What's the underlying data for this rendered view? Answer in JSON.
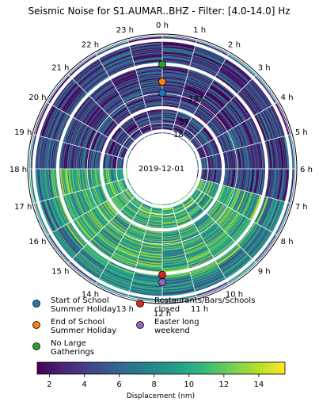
{
  "chart_data": {
    "type": "polar_heatmap",
    "title": "Seismic Noise for S1.AUMAR..BHZ - Filter: [4.0-14.0] Hz",
    "hour_labels": [
      "0 h",
      "1 h",
      "2 h",
      "3 h",
      "4 h",
      "5 h",
      "6 h",
      "7 h",
      "8 h",
      "9 h",
      "10 h",
      "11 h",
      "12 h",
      "13 h",
      "14 h",
      "15 h",
      "16 h",
      "17 h",
      "18 h",
      "19 h",
      "20 h",
      "21 h",
      "22 h",
      "23 h"
    ],
    "start_date_label": "2019-12-01",
    "radial_tick_labels": [
      "133",
      "57",
      "18"
    ],
    "colorbar": {
      "label": "Displacement (nm)",
      "ticks": [
        "2",
        "4",
        "6",
        "8",
        "10",
        "12",
        "14"
      ],
      "range": [
        1.3,
        15.5
      ],
      "cmap": [
        "#440154",
        "#482878",
        "#3e4989",
        "#31688e",
        "#26828e",
        "#1f9e89",
        "#35b779",
        "#6ece58",
        "#b5de2b",
        "#fde725"
      ]
    },
    "legend": [
      {
        "label": "Start of School\nSummer Holiday",
        "color": "#1f77b4"
      },
      {
        "label": "End of School\nSummer Holiday",
        "color": "#ff7f0e"
      },
      {
        "label": "No Large\nGatherings",
        "color": "#2ca02c"
      },
      {
        "label": "Restaurants/Bars/Schools\nclosed",
        "color": "#d62728"
      },
      {
        "label": "Easter long\nweekend",
        "color": "#9467bd"
      }
    ],
    "event_markers": [
      {
        "label": "No Large Gatherings",
        "color": "#2ca02c",
        "hour": 0,
        "day": 98
      },
      {
        "label": "End of School Summer Holiday",
        "color": "#ff7f0e",
        "hour": 0,
        "day": 75
      },
      {
        "label": "Start of School Summer Holiday",
        "color": "#1f77b4",
        "hour": 0,
        "day": 60
      },
      {
        "label": "Restaurants/Bars/Schools closed",
        "color": "#d62728",
        "hour": 12,
        "day": 100
      },
      {
        "label": "Easter long weekend",
        "color": "#9467bd",
        "hour": 12,
        "day": 110
      }
    ]
  }
}
